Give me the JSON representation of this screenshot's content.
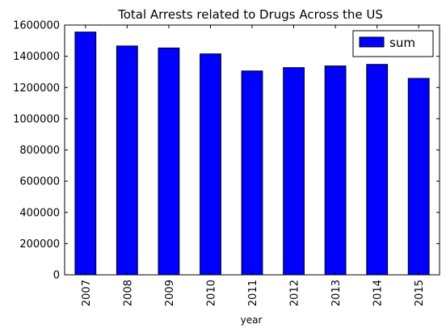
{
  "chart_data": {
    "type": "bar",
    "title": "Total Arrests related to Drugs Across the US",
    "xlabel": "year",
    "ylabel": "",
    "categories": [
      "2007",
      "2008",
      "2009",
      "2010",
      "2011",
      "2012",
      "2013",
      "2014",
      "2015"
    ],
    "series": [
      {
        "name": "sum",
        "color": "#0000ff",
        "values": [
          1555000,
          1466000,
          1453000,
          1415000,
          1306000,
          1327000,
          1338000,
          1348000,
          1258000
        ]
      }
    ],
    "ylim": [
      0,
      1600000
    ],
    "yticks": [
      0,
      200000,
      400000,
      600000,
      800000,
      1000000,
      1200000,
      1400000,
      1600000
    ],
    "legend_position": "top-right",
    "grid": false
  }
}
